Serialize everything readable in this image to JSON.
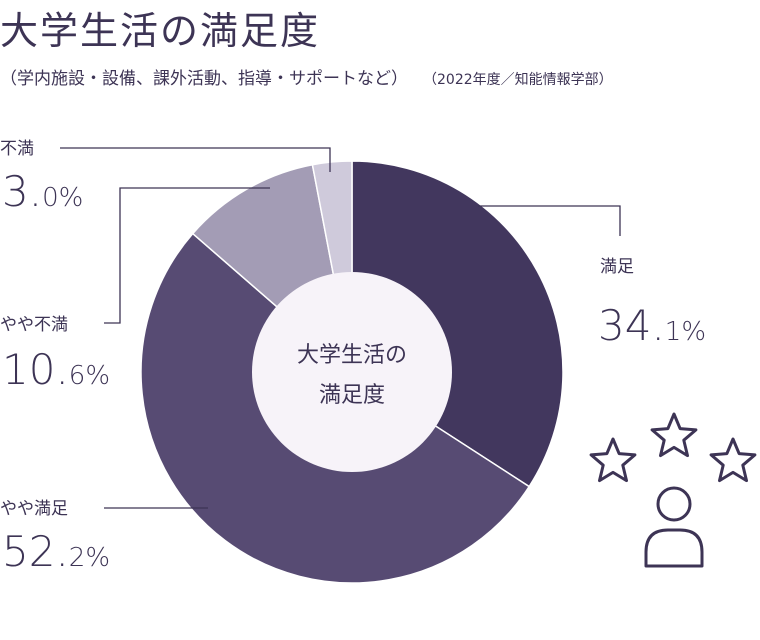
{
  "header": {
    "title": "大学生活の満足度",
    "subtitle": "（学内施設・設備、課外活動、指導・サポートなど）",
    "year_note": "（2022年度／知能情報学部）"
  },
  "chart_data": {
    "type": "pie",
    "title": "大学生活の満足度",
    "center_label": [
      "大学生活の",
      "満足度"
    ],
    "categories": [
      "満足",
      "やや満足",
      "やや不満",
      "不満"
    ],
    "values": [
      34.1,
      52.2,
      10.6,
      3.0
    ],
    "value_labels": [
      {
        "int": "34.",
        "dec": "1%"
      },
      {
        "int": "52.",
        "dec": "2%"
      },
      {
        "int": "10.",
        "dec": "6%"
      },
      {
        "int": "3.",
        "dec": "0%"
      }
    ],
    "colors": [
      "#42375e",
      "#574b73",
      "#a39cb5",
      "#cfcadb"
    ],
    "center_color": "#f7f3f9",
    "line_color": "#3d3455"
  },
  "decoration": {
    "icon": "stars-and-person-icon"
  }
}
